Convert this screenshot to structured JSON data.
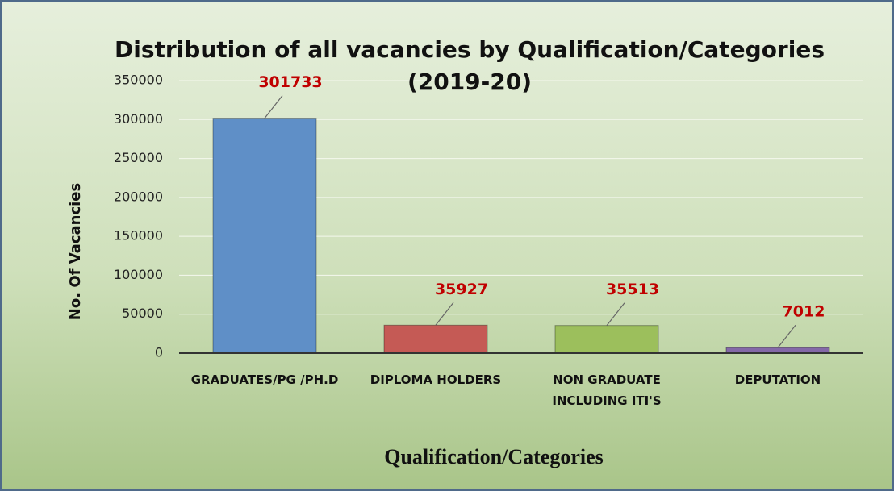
{
  "chart_data": {
    "type": "bar",
    "title": "Distribution of all vacancies by Qualification/Categories (2019-20)",
    "x_label": "Qualification/Categories",
    "y_label": "No. Of Vacancies",
    "categories": [
      "GRADUATES/PG /PH.D",
      "DIPLOMA HOLDERS",
      "NON GRADUATE INCLUDING ITI'S",
      "DEPUTATION"
    ],
    "values": [
      301733,
      35927,
      35513,
      7012
    ],
    "colors": [
      "#5f8fc7",
      "#c55a55",
      "#9cbf5c",
      "#8468a8"
    ],
    "ylim": [
      0,
      350000
    ],
    "yticks": [
      0,
      50000,
      100000,
      150000,
      200000,
      250000,
      300000,
      350000
    ],
    "grid": true
  }
}
